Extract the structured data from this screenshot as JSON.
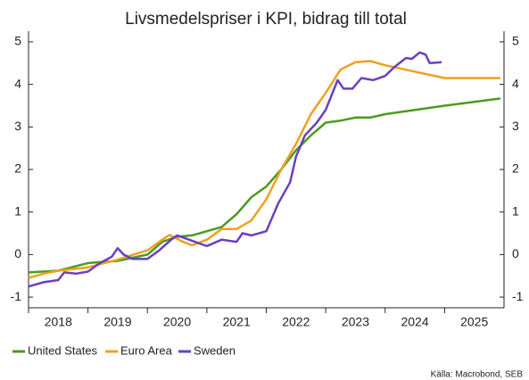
{
  "chart_data": {
    "type": "line",
    "title": "Livsmedelspriser i KPI, bidrag till total",
    "source": "Källa: Macrobond, SEB",
    "xlim": [
      2018,
      2026
    ],
    "xticks": [
      {
        "value": 2018.5,
        "label": "2018"
      },
      {
        "value": 2019.5,
        "label": "2019"
      },
      {
        "value": 2020.5,
        "label": "2020"
      },
      {
        "value": 2021.5,
        "label": "2021"
      },
      {
        "value": 2022.5,
        "label": "2022"
      },
      {
        "value": 2023.5,
        "label": "2023"
      },
      {
        "value": 2024.5,
        "label": "2024"
      },
      {
        "value": 2025.5,
        "label": "2025"
      }
    ],
    "ylim": [
      -1.25,
      5.25
    ],
    "yticks": [
      -1,
      0,
      1,
      2,
      3,
      4,
      5
    ],
    "y2lim": [
      -1.25,
      5.25
    ],
    "y2ticks": [
      -1,
      0,
      1,
      2,
      3,
      4,
      5
    ],
    "legend": "bottom",
    "series": [
      {
        "name": "United States",
        "color": "#4c9a1f",
        "x": [
          2018.0,
          2018.5,
          2019.0,
          2019.5,
          2020.0,
          2020.25,
          2020.5,
          2020.75,
          2021.0,
          2021.25,
          2021.5,
          2021.75,
          2022.0,
          2022.25,
          2022.5,
          2022.75,
          2023.0,
          2023.25,
          2023.5,
          2023.75,
          2024.0,
          2025.0,
          2025.94
        ],
        "values": [
          -0.42,
          -0.38,
          -0.2,
          -0.15,
          0.0,
          0.3,
          0.42,
          0.45,
          0.55,
          0.65,
          0.95,
          1.35,
          1.6,
          2.0,
          2.45,
          2.8,
          3.1,
          3.15,
          3.22,
          3.22,
          3.3,
          3.5,
          3.67
        ]
      },
      {
        "name": "Euro Area",
        "color": "#f0a01e",
        "x": [
          2018.0,
          2018.25,
          2018.5,
          2019.0,
          2019.5,
          2020.0,
          2020.25,
          2020.37,
          2020.6,
          2020.75,
          2021.0,
          2021.25,
          2021.5,
          2021.75,
          2022.0,
          2022.25,
          2022.5,
          2022.75,
          2023.0,
          2023.25,
          2023.5,
          2023.75,
          2024.0,
          2024.5,
          2025.0,
          2025.94
        ],
        "values": [
          -0.55,
          -0.45,
          -0.38,
          -0.3,
          -0.12,
          0.1,
          0.35,
          0.46,
          0.3,
          0.22,
          0.35,
          0.6,
          0.6,
          0.8,
          1.3,
          2.0,
          2.6,
          3.3,
          3.8,
          4.35,
          4.52,
          4.55,
          4.45,
          4.3,
          4.15,
          4.15
        ]
      },
      {
        "name": "Sweden",
        "color": "#6a3fc0",
        "x": [
          2018.0,
          2018.25,
          2018.5,
          2018.6,
          2018.8,
          2019.0,
          2019.2,
          2019.4,
          2019.5,
          2019.6,
          2019.75,
          2020.0,
          2020.2,
          2020.4,
          2020.5,
          2020.7,
          2020.9,
          2021.0,
          2021.25,
          2021.5,
          2021.6,
          2021.75,
          2022.0,
          2022.2,
          2022.4,
          2022.5,
          2022.65,
          2022.85,
          2023.0,
          2023.2,
          2023.3,
          2023.45,
          2023.6,
          2023.8,
          2024.0,
          2024.15,
          2024.35,
          2024.45,
          2024.58,
          2024.68,
          2024.75,
          2024.95
        ],
        "values": [
          -0.75,
          -0.65,
          -0.6,
          -0.42,
          -0.45,
          -0.4,
          -0.2,
          -0.05,
          0.15,
          0.0,
          -0.1,
          -0.1,
          0.1,
          0.35,
          0.45,
          0.35,
          0.25,
          0.2,
          0.35,
          0.3,
          0.5,
          0.45,
          0.55,
          1.2,
          1.7,
          2.3,
          2.8,
          3.1,
          3.4,
          4.1,
          3.9,
          3.9,
          4.15,
          4.1,
          4.2,
          4.4,
          4.62,
          4.6,
          4.75,
          4.7,
          4.5,
          4.52
        ]
      }
    ]
  }
}
